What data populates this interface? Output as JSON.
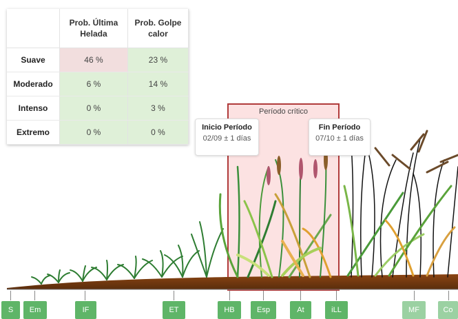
{
  "risk_table": {
    "headers": [
      "",
      "Prob. Última Helada",
      "Prob. Golpe calor"
    ],
    "rows": [
      {
        "label": "Suave",
        "frost": "46 %",
        "heat": "23 %"
      },
      {
        "label": "Moderado",
        "frost": "6 %",
        "heat": "14 %"
      },
      {
        "label": "Intenso",
        "frost": "0 %",
        "heat": "3 %"
      },
      {
        "label": "Extremo",
        "frost": "0 %",
        "heat": "0 %"
      }
    ]
  },
  "critical_period": {
    "label": "Período crítico",
    "start": {
      "title": "Inicio Período",
      "date": "02/09 ± 1 días"
    },
    "end": {
      "title": "Fin Período",
      "date": "07/10 ± 1 días"
    }
  },
  "stages": [
    "S",
    "Em",
    "IF",
    "ET",
    "HB",
    "Esp",
    "At",
    "iLL",
    "MF",
    "Co"
  ],
  "colors": {
    "stage_green": "#5fb568",
    "stage_green_faded": "#9bd1a2",
    "critical_border": "#b03a3a",
    "critical_fill": "#f8bebe",
    "cell_ok": "#dff0d8",
    "cell_warn": "#f2dede"
  }
}
